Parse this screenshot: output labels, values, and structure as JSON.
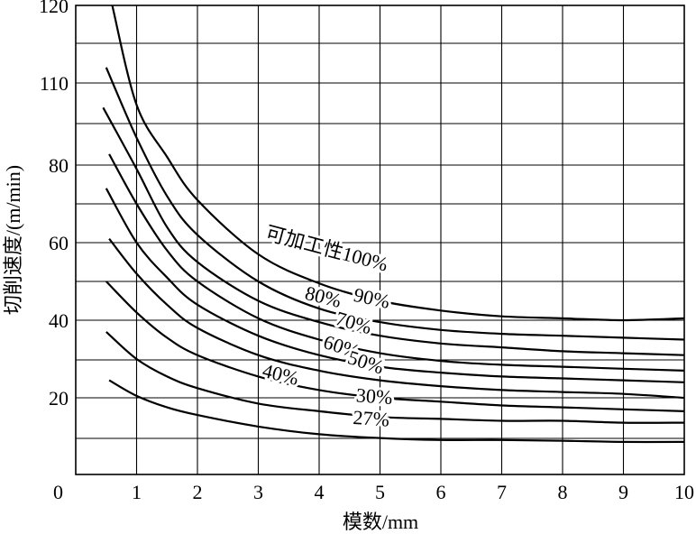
{
  "chart_data": {
    "type": "line",
    "xlabel": "模数/mm",
    "ylabel": "切削速度/(m/min)",
    "xlim": [
      0,
      10
    ],
    "ylim": [
      0,
      120
    ],
    "x_ticks": [
      "1",
      "2",
      "3",
      "4",
      "5",
      "6",
      "7",
      "8",
      "9",
      "10"
    ],
    "y_ticks": [
      "0",
      "20",
      "40",
      "60",
      "80",
      "110",
      "120"
    ],
    "grid": true,
    "series": [
      {
        "name": "可加工性100%",
        "x": [
          0.6,
          1,
          1.5,
          2,
          3,
          4,
          5,
          6,
          7,
          8,
          9,
          10
        ],
        "y": [
          122,
          102,
          83,
          71,
          57,
          49.5,
          45,
          42.5,
          41,
          40.5,
          40,
          40.5
        ]
      },
      {
        "name": "90%",
        "x": [
          0.5,
          1,
          1.5,
          2,
          3,
          4,
          5,
          6,
          7,
          8,
          9,
          10
        ],
        "y": [
          112,
          90,
          72,
          62,
          50,
          43,
          39.5,
          37.5,
          36.5,
          36,
          35.5,
          35
        ]
      },
      {
        "name": "80%",
        "x": [
          0.45,
          1,
          1.5,
          2,
          3,
          4,
          5,
          6,
          7,
          8,
          9,
          10
        ],
        "y": [
          101,
          79,
          64,
          55,
          45,
          39.5,
          36,
          34,
          33,
          32,
          31.5,
          31
        ]
      },
      {
        "name": "70%",
        "x": [
          0.55,
          1,
          1.5,
          2,
          3,
          4,
          5,
          6,
          7,
          8,
          9,
          10
        ],
        "y": [
          84,
          70,
          58,
          50,
          40.5,
          35,
          31.5,
          29.5,
          28.5,
          28,
          27.5,
          27
        ]
      },
      {
        "name": "60%",
        "x": [
          0.5,
          1,
          1.5,
          2,
          3,
          4,
          5,
          6,
          7,
          8,
          9,
          10
        ],
        "y": [
          74,
          60,
          51,
          44,
          36,
          31,
          28,
          26.5,
          25.5,
          25,
          24.5,
          24
        ]
      },
      {
        "name": "50%",
        "x": [
          0.55,
          1,
          1.5,
          2,
          3,
          4,
          5,
          6,
          7,
          8,
          9,
          10
        ],
        "y": [
          61,
          52,
          44,
          38,
          31,
          27,
          24.5,
          23,
          22,
          21.5,
          21,
          20
        ]
      },
      {
        "name": "40%",
        "x": [
          0.5,
          1,
          1.5,
          2,
          3,
          4,
          5,
          6,
          7,
          8,
          9,
          10
        ],
        "y": [
          50,
          42,
          35.5,
          31,
          25.5,
          22,
          20,
          19,
          18,
          17.5,
          17,
          16.5
        ]
      },
      {
        "name": "30%",
        "x": [
          0.5,
          1,
          1.5,
          2,
          3,
          4,
          5,
          6,
          7,
          8,
          9,
          10
        ],
        "y": [
          37,
          30,
          25.5,
          22.5,
          18.5,
          16.5,
          15,
          14.5,
          14,
          14,
          13.5,
          13.5
        ]
      },
      {
        "name": "27%",
        "x": [
          0.55,
          1,
          1.5,
          2,
          3,
          4,
          5,
          6,
          7,
          8,
          9,
          10
        ],
        "y": [
          24.5,
          20.5,
          17.5,
          15.5,
          12.5,
          10.5,
          9.5,
          9,
          9,
          8.8,
          8.5,
          8.5
        ]
      }
    ],
    "curve_labels": [
      {
        "text": "可加工性100%",
        "x": 3.1,
        "y": 61,
        "rotate": 15
      },
      {
        "text": "90%",
        "x": 4.55,
        "y": 45,
        "rotate": 12
      },
      {
        "text": "80%",
        "x": 3.75,
        "y": 45.5,
        "rotate": 14
      },
      {
        "text": "70%",
        "x": 4.25,
        "y": 39,
        "rotate": 16
      },
      {
        "text": "60%",
        "x": 4.05,
        "y": 33,
        "rotate": 18
      },
      {
        "text": "50%",
        "x": 4.45,
        "y": 29,
        "rotate": 18
      },
      {
        "text": "40%",
        "x": 3.05,
        "y": 25.5,
        "rotate": 14
      },
      {
        "text": "30%",
        "x": 4.6,
        "y": 19,
        "rotate": 4
      },
      {
        "text": "27%",
        "x": 4.55,
        "y": 13.2,
        "rotate": 4
      }
    ]
  }
}
